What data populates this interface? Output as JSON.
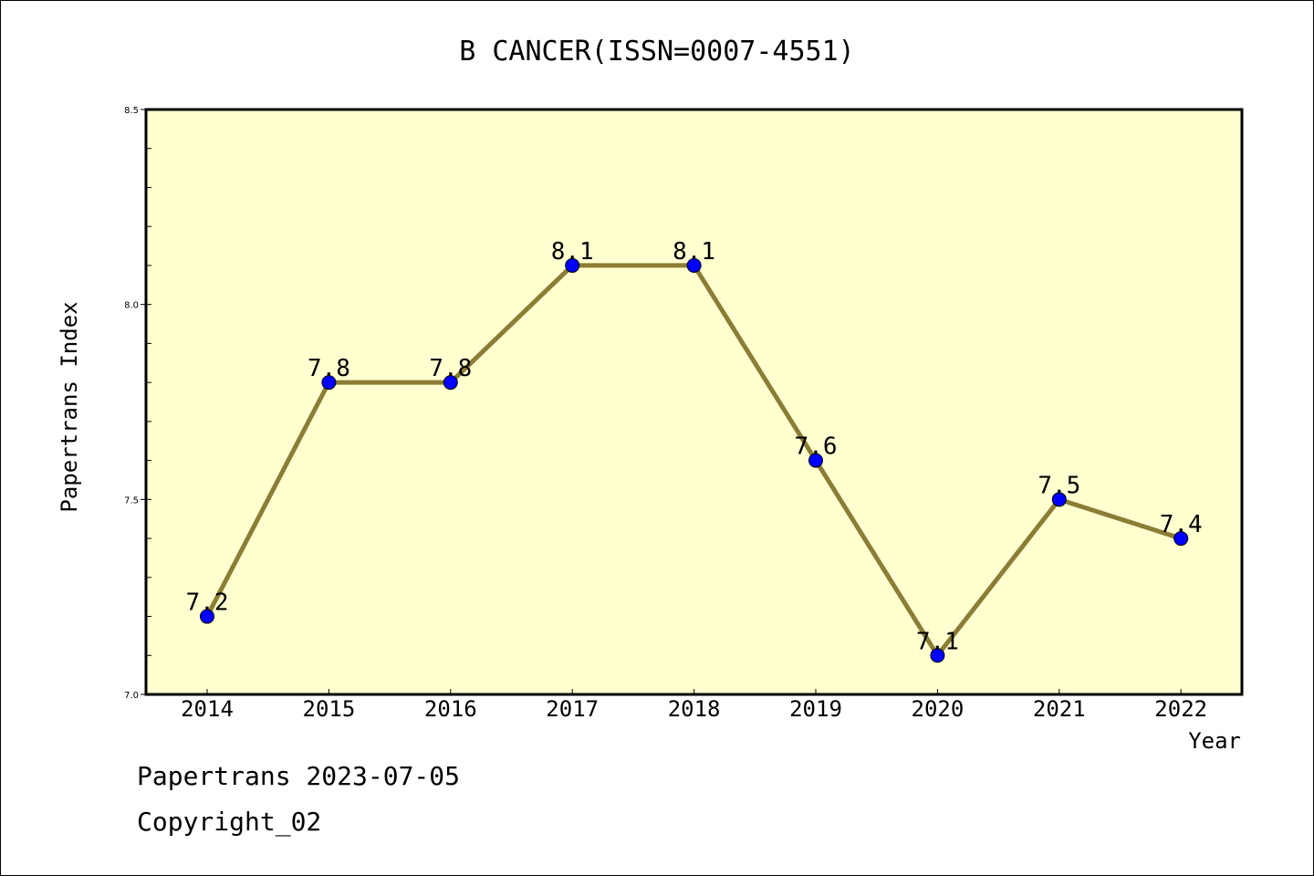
{
  "chart_data": {
    "type": "line",
    "title": "B CANCER(ISSN=0007-4551)",
    "xlabel": "Year",
    "ylabel": "Papertrans Index",
    "categories": [
      "2014",
      "2015",
      "2016",
      "2017",
      "2018",
      "2019",
      "2020",
      "2021",
      "2022"
    ],
    "values": [
      7.2,
      7.8,
      7.8,
      8.1,
      8.1,
      7.6,
      7.1,
      7.5,
      7.4
    ],
    "data_labels": [
      "7.2",
      "7.8",
      "7.8",
      "8.1",
      "8.1",
      "7.6",
      "7.1",
      "7.5",
      "7.4"
    ],
    "ylim": [
      7.0,
      8.5
    ],
    "yticks": [
      "7.0",
      "7.5",
      "8.0",
      "8.5"
    ],
    "grid": false,
    "legend": "none",
    "colors": {
      "plot_background": "#ffffd0",
      "line": "#8b7d35",
      "marker": "#0000ff"
    }
  },
  "footer": {
    "line1": "Papertrans 2023-07-05",
    "line2": "Copyright_02"
  }
}
